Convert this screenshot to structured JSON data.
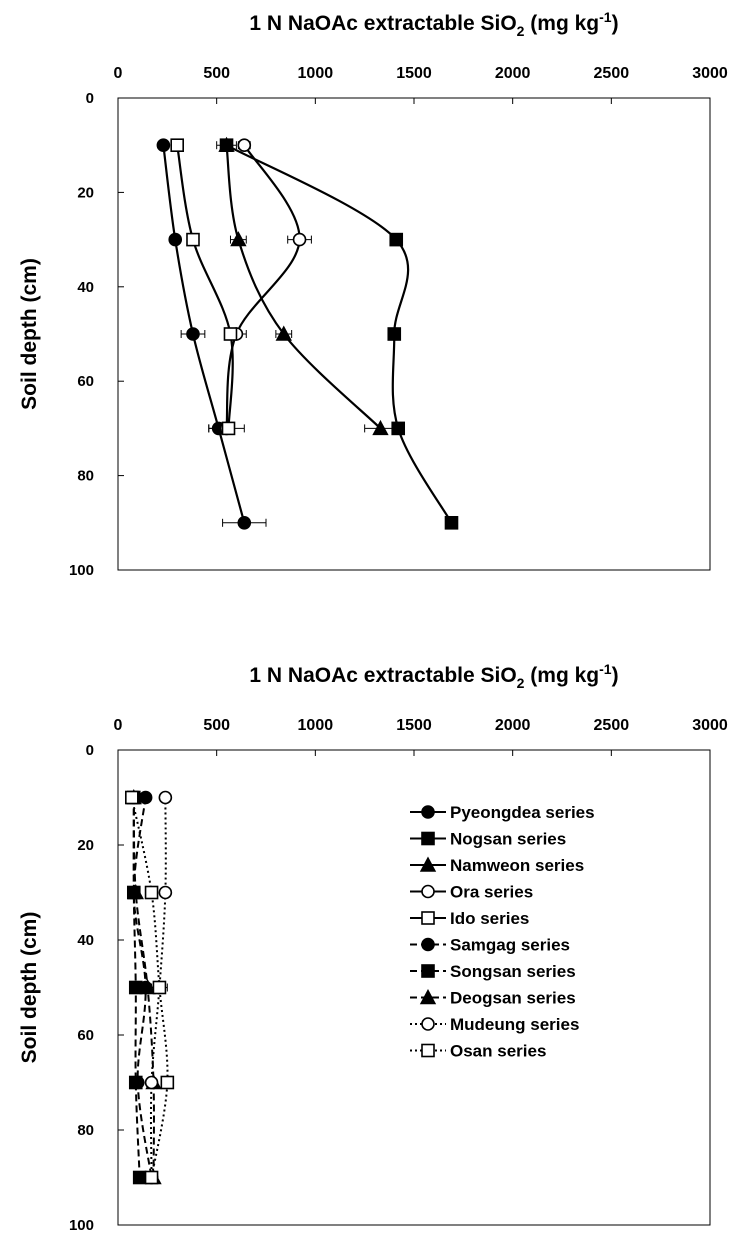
{
  "chart_data": [
    {
      "type": "scatter",
      "title": "1 N NaOAc extractable SiO2 (mg kg-1)",
      "title_parts": {
        "main": "1 N NaOAc extractable SiO",
        "sub": "2",
        "after_sub": " (mg kg",
        "sup": "-1",
        "end": ")"
      },
      "xlabel": "",
      "ylabel": "Soil depth (cm)",
      "x_axis_position": "top",
      "y_reversed": true,
      "xlim": [
        0,
        3000
      ],
      "ylim": [
        0,
        100
      ],
      "xticks": [
        "0",
        "500",
        "1000",
        "1500",
        "2000",
        "2500",
        "3000"
      ],
      "yticks": [
        "0",
        "20",
        "40",
        "60",
        "80",
        "100"
      ],
      "grid": false,
      "legend": "none",
      "series": [
        {
          "marker": "filled-circle",
          "line": "solid",
          "points": [
            [
              230,
              10
            ],
            [
              290,
              30
            ],
            [
              380,
              50
            ],
            [
              510,
              70
            ],
            [
              640,
              90
            ]
          ],
          "xerr": [
            0,
            0,
            60,
            50,
            110
          ]
        },
        {
          "marker": "filled-square",
          "line": "solid",
          "points": [
            [
              550,
              10
            ],
            [
              1410,
              30
            ],
            [
              1400,
              50
            ],
            [
              1420,
              70
            ],
            [
              1690,
              90
            ]
          ],
          "xerr": [
            50,
            0,
            0,
            0,
            0
          ]
        },
        {
          "marker": "filled-triangle",
          "line": "solid",
          "points": [
            [
              550,
              10
            ],
            [
              610,
              30
            ],
            [
              840,
              50
            ],
            [
              1330,
              70
            ]
          ],
          "xerr": [
            0,
            40,
            40,
            80
          ]
        },
        {
          "marker": "open-circle",
          "line": "solid",
          "points": [
            [
              640,
              10
            ],
            [
              920,
              30
            ],
            [
              600,
              50
            ],
            [
              550,
              70
            ]
          ],
          "xerr": [
            30,
            60,
            50,
            90
          ]
        },
        {
          "marker": "open-square",
          "line": "solid",
          "points": [
            [
              300,
              10
            ],
            [
              380,
              30
            ],
            [
              570,
              50
            ],
            [
              560,
              70
            ]
          ],
          "xerr": [
            0,
            0,
            0,
            0
          ]
        }
      ]
    },
    {
      "type": "scatter",
      "title": "1 N NaOAc extractable SiO2 (mg kg-1)",
      "title_parts": {
        "main": "1 N NaOAc extractable SiO",
        "sub": "2",
        "after_sub": " (mg kg",
        "sup": "-1",
        "end": ")"
      },
      "xlabel": "",
      "ylabel": "Soil depth (cm)",
      "x_axis_position": "top",
      "y_reversed": true,
      "xlim": [
        0,
        3000
      ],
      "ylim": [
        0,
        100
      ],
      "xticks": [
        "0",
        "500",
        "1000",
        "1500",
        "2000",
        "2500",
        "3000"
      ],
      "yticks": [
        "0",
        "20",
        "40",
        "60",
        "80",
        "100"
      ],
      "grid": false,
      "legend": "right",
      "series": [
        {
          "name": "Pyeongdea series",
          "marker": "filled-circle",
          "line": "solid",
          "points": [],
          "xerr": []
        },
        {
          "name": "Nogsan series",
          "marker": "filled-square",
          "line": "solid",
          "points": [],
          "xerr": []
        },
        {
          "name": "Namweon series",
          "marker": "filled-triangle",
          "line": "solid",
          "points": [],
          "xerr": []
        },
        {
          "name": "Ora series",
          "marker": "open-circle",
          "line": "solid",
          "points": [],
          "xerr": []
        },
        {
          "name": "Ido series",
          "marker": "open-square",
          "line": "solid",
          "points": [],
          "xerr": []
        },
        {
          "name": "Samgag series",
          "marker": "filled-circle",
          "line": "dashed",
          "points": [
            [
              140,
              10
            ],
            [
              80,
              30
            ],
            [
              140,
              50
            ],
            [
              100,
              70
            ],
            [
              170,
              90
            ]
          ],
          "xerr": [
            0,
            0,
            0,
            0,
            0
          ]
        },
        {
          "name": "Songsan series",
          "marker": "filled-square",
          "line": "dashed",
          "points": [
            [
              80,
              10
            ],
            [
              80,
              30
            ],
            [
              90,
              50
            ],
            [
              90,
              70
            ],
            [
              110,
              90
            ]
          ],
          "xerr": [
            0,
            0,
            0,
            0,
            0
          ]
        },
        {
          "name": "Deogsan series",
          "marker": "filled-triangle",
          "line": "dashed",
          "points": [
            [
              80,
              10
            ],
            [
              90,
              30
            ],
            [
              150,
              50
            ],
            [
              180,
              70
            ],
            [
              180,
              90
            ]
          ],
          "xerr": [
            0,
            0,
            0,
            0,
            0
          ]
        },
        {
          "name": "Mudeung series",
          "marker": "open-circle",
          "line": "dotted",
          "points": [
            [
              240,
              10
            ],
            [
              240,
              30
            ],
            [
              210,
              50
            ],
            [
              170,
              70
            ],
            [
              170,
              90
            ]
          ],
          "xerr": [
            0,
            0,
            0,
            0,
            30
          ]
        },
        {
          "name": "Osan series",
          "marker": "open-square",
          "line": "dotted",
          "points": [
            [
              70,
              10
            ],
            [
              170,
              30
            ],
            [
              210,
              50
            ],
            [
              250,
              70
            ],
            [
              170,
              90
            ]
          ],
          "xerr": [
            0,
            0,
            40,
            0,
            0
          ]
        }
      ]
    }
  ]
}
